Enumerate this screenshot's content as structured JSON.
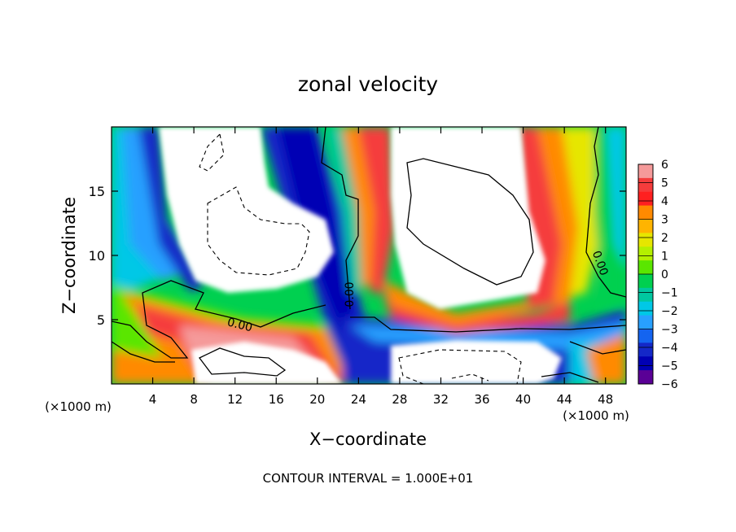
{
  "chart_data": {
    "type": "heatmap",
    "title": "zonal velocity",
    "xlabel": "X−coordinate",
    "ylabel": "Z−coordinate",
    "x_unit_label": "(×1000 m)",
    "y_unit_label": "(×1000 m)",
    "xlim": [
      0,
      50
    ],
    "ylim": [
      0,
      20
    ],
    "x_ticks": [
      4,
      8,
      12,
      16,
      20,
      24,
      28,
      32,
      36,
      40,
      44,
      48
    ],
    "y_ticks": [
      5,
      10,
      15
    ],
    "colorbar": {
      "ticks": [
        "6",
        "5",
        "4",
        "3",
        "2",
        "1",
        "0",
        "−1",
        "−2",
        "−3",
        "−4",
        "−5",
        "−6"
      ],
      "range": [
        -6,
        6
      ],
      "colors": [
        "#f59a9a",
        "#f53c3c",
        "#ff2020",
        "#ff8a00",
        "#ffb400",
        "#e6e600",
        "#b4f000",
        "#5ae600",
        "#00d050",
        "#00c8a0",
        "#00c8e6",
        "#28a0ff",
        "#1464f0",
        "#1428c8",
        "#0000b4",
        "#5a0096"
      ]
    },
    "contour_labels": [
      "0.00",
      "0.00",
      "0.00"
    ],
    "footnote": "CONTOUR INTERVAL = 1.000E+01"
  }
}
